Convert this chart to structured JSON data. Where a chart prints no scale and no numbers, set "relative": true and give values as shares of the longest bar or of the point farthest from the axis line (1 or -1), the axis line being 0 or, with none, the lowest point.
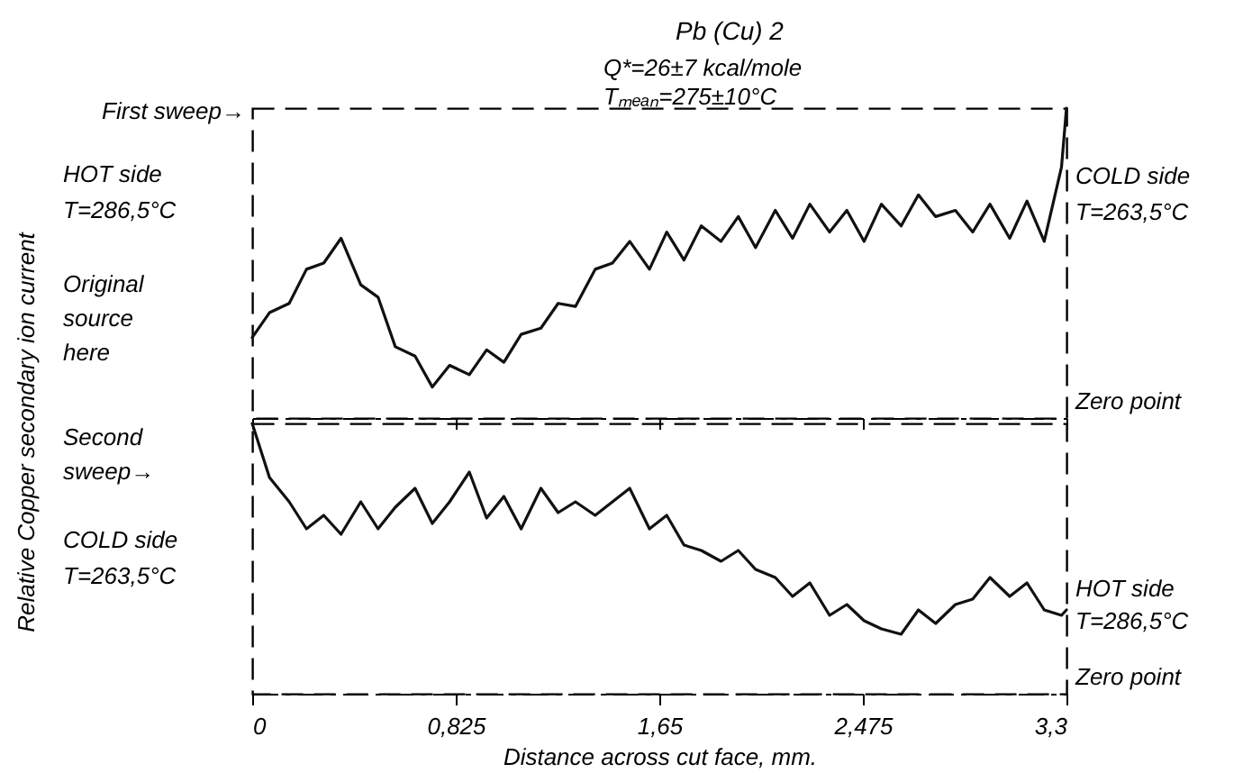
{
  "chart_data": [
    {
      "type": "line",
      "title": "Pb (Cu) 2",
      "ylabel": "Relative Copper secondary ion current",
      "relative": true,
      "line_style": "solid",
      "tick_labels": false,
      "xlim": [
        0,
        3.3
      ],
      "xticks": [
        0,
        0.825,
        1.65,
        2.475,
        3.3
      ],
      "x": [
        0,
        0.07,
        0.15,
        0.22,
        0.29,
        0.36,
        0.44,
        0.51,
        0.58,
        0.66,
        0.73,
        0.8,
        0.88,
        0.95,
        1.02,
        1.09,
        1.17,
        1.24,
        1.31,
        1.39,
        1.46,
        1.53,
        1.61,
        1.68,
        1.75,
        1.82,
        1.9,
        1.97,
        2.04,
        2.12,
        2.19,
        2.26,
        2.34,
        2.41,
        2.48,
        2.55,
        2.63,
        2.7,
        2.77,
        2.85,
        2.92,
        2.99,
        3.07,
        3.14,
        3.21,
        3.28,
        3.3
      ],
      "series": [
        {
          "color": "#111111",
          "values": [
            0.26,
            0.34,
            0.37,
            0.48,
            0.5,
            0.58,
            0.43,
            0.39,
            0.23,
            0.2,
            0.1,
            0.17,
            0.14,
            0.22,
            0.18,
            0.27,
            0.29,
            0.37,
            0.36,
            0.48,
            0.5,
            0.57,
            0.48,
            0.6,
            0.51,
            0.62,
            0.57,
            0.65,
            0.55,
            0.67,
            0.58,
            0.69,
            0.6,
            0.67,
            0.57,
            0.69,
            0.62,
            0.72,
            0.65,
            0.67,
            0.6,
            0.69,
            0.58,
            0.7,
            0.57,
            0.81,
            1
          ]
        }
      ],
      "annotations": [
        "Q*=26±7 kcal/mole",
        "Tₘₑₐₙ=275±10°C",
        "First sweep→",
        "HOT side",
        "T=286,5°C",
        "Original source here",
        "COLD side",
        "T=263,5°C",
        "Zero point"
      ]
    },
    {
      "type": "line",
      "xlabel": "Distance across cut face, mm.",
      "relative": true,
      "line_style": "solid",
      "tick_labels": "x",
      "xlim": [
        0,
        3.3
      ],
      "xticks": [
        0,
        {
          "value": 0.825,
          "label": "0,825"
        },
        {
          "value": 1.65,
          "label": "1,65"
        },
        {
          "value": 2.475,
          "label": "2,475"
        },
        {
          "value": 3.3,
          "label": "3,3"
        }
      ],
      "x": [
        0,
        0.07,
        0.15,
        0.22,
        0.29,
        0.36,
        0.44,
        0.51,
        0.58,
        0.66,
        0.73,
        0.8,
        0.88,
        0.95,
        1.02,
        1.09,
        1.17,
        1.24,
        1.31,
        1.39,
        1.46,
        1.53,
        1.61,
        1.68,
        1.75,
        1.82,
        1.9,
        1.97,
        2.04,
        2.12,
        2.19,
        2.26,
        2.34,
        2.41,
        2.48,
        2.55,
        2.63,
        2.7,
        2.77,
        2.85,
        2.92,
        2.99,
        3.07,
        3.14,
        3.21,
        3.28,
        3.3
      ],
      "series": [
        {
          "color": "#111111",
          "values": [
            1,
            0.8,
            0.71,
            0.61,
            0.66,
            0.59,
            0.71,
            0.61,
            0.69,
            0.76,
            0.63,
            0.71,
            0.82,
            0.65,
            0.73,
            0.61,
            0.76,
            0.67,
            0.71,
            0.66,
            0.71,
            0.76,
            0.61,
            0.66,
            0.55,
            0.53,
            0.49,
            0.53,
            0.46,
            0.43,
            0.36,
            0.41,
            0.29,
            0.33,
            0.27,
            0.24,
            0.22,
            0.31,
            0.26,
            0.33,
            0.35,
            0.43,
            0.36,
            0.41,
            0.31,
            0.29,
            0.31
          ]
        }
      ],
      "annotations": [
        "Second sweep→",
        "COLD side",
        "T=263,5°C",
        "HOT side",
        "T=286,5°C",
        "Zero point"
      ]
    }
  ]
}
